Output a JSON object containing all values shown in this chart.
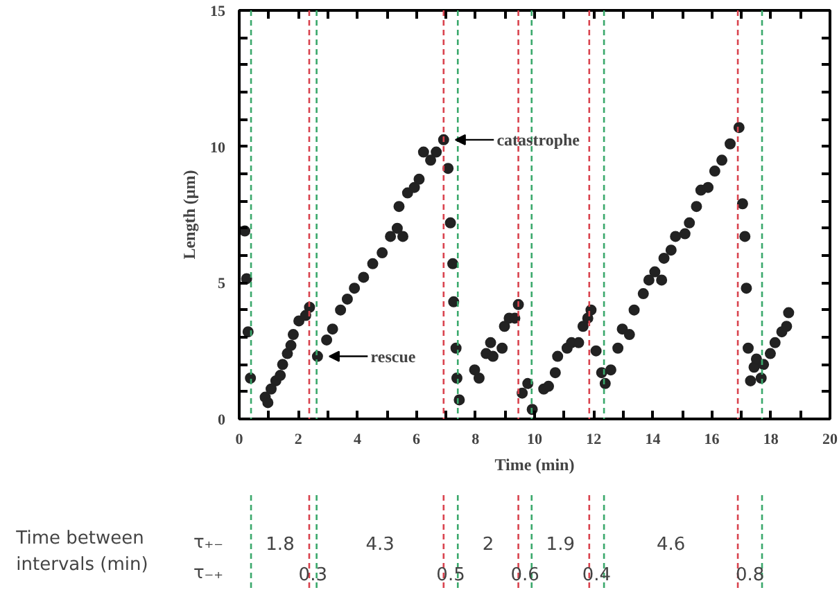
{
  "chart_data": {
    "type": "scatter",
    "xlabel": "Time (min)",
    "ylabel": "Length (µm)",
    "x": [
      0.19,
      0.25,
      0.3,
      0.38,
      0.88,
      0.97,
      1.08,
      1.24,
      1.39,
      1.47,
      1.63,
      1.75,
      1.83,
      2.02,
      2.25,
      2.38,
      2.65,
      2.96,
      3.16,
      3.43,
      3.66,
      3.9,
      4.21,
      4.52,
      4.84,
      5.12,
      5.35,
      5.54,
      5.41,
      5.7,
      5.93,
      6.09,
      6.24,
      6.48,
      6.67,
      6.92,
      7.07,
      7.15,
      7.23,
      7.26,
      7.34,
      7.37,
      7.45,
      7.97,
      8.12,
      8.36,
      8.51,
      8.59,
      8.9,
      8.98,
      9.14,
      9.33,
      9.45,
      9.58,
      9.77,
      9.92,
      10.31,
      10.47,
      10.7,
      10.78,
      11.1,
      11.25,
      11.49,
      11.64,
      11.8,
      11.91,
      12.08,
      12.27,
      12.39,
      12.58,
      12.82,
      12.97,
      13.21,
      13.37,
      13.68,
      13.87,
      14.07,
      14.3,
      14.38,
      14.62,
      14.77,
      15.09,
      15.24,
      15.48,
      15.63,
      15.87,
      16.1,
      16.34,
      16.62,
      16.92,
      17.04,
      17.12,
      17.17,
      17.23,
      17.31,
      17.43,
      17.51,
      17.67,
      17.75,
      17.98,
      18.14,
      18.37,
      18.53,
      18.6
    ],
    "values": [
      6.9,
      5.15,
      3.2,
      1.5,
      0.8,
      0.6,
      1.1,
      1.4,
      1.6,
      2.0,
      2.4,
      2.7,
      3.1,
      3.6,
      3.8,
      4.1,
      2.3,
      2.9,
      3.3,
      4.0,
      4.4,
      4.8,
      5.2,
      5.7,
      6.1,
      6.7,
      7.0,
      6.7,
      7.8,
      8.3,
      8.5,
      8.8,
      9.8,
      9.5,
      9.8,
      10.25,
      9.2,
      7.2,
      5.7,
      4.3,
      2.6,
      1.5,
      0.7,
      1.8,
      1.5,
      2.4,
      2.8,
      2.3,
      2.6,
      3.4,
      3.7,
      3.7,
      4.2,
      0.95,
      1.3,
      0.35,
      1.1,
      1.2,
      1.7,
      2.3,
      2.6,
      2.8,
      2.8,
      3.4,
      3.7,
      4.0,
      2.5,
      1.7,
      1.3,
      1.8,
      2.6,
      3.3,
      3.1,
      4.0,
      4.6,
      5.1,
      5.4,
      5.1,
      5.9,
      6.2,
      6.7,
      6.8,
      7.2,
      7.8,
      8.4,
      8.5,
      9.1,
      9.5,
      10.1,
      10.7,
      7.9,
      6.7,
      4.8,
      2.6,
      1.4,
      1.9,
      2.2,
      1.5,
      2.0,
      2.4,
      2.8,
      3.2,
      3.4,
      3.9
    ],
    "color": "#222222",
    "marker": "circle",
    "grid": false,
    "xlim": [
      0,
      20
    ],
    "ylim": [
      0,
      15
    ],
    "xticks": [
      0,
      {
        "value": 1,
        "label": null
      },
      2,
      {
        "value": 3,
        "label": null
      },
      4,
      {
        "value": 5,
        "label": null
      },
      6,
      {
        "value": 7,
        "label": null
      },
      8,
      {
        "value": 9,
        "label": null
      },
      10,
      {
        "value": 11,
        "label": null
      },
      12,
      {
        "value": 13,
        "label": null
      },
      14,
      {
        "value": 15,
        "label": null
      },
      16,
      {
        "value": 17,
        "label": null
      },
      18,
      {
        "value": 19,
        "label": null
      },
      20
    ],
    "yticks": [
      0,
      {
        "value": 1,
        "label": null
      },
      {
        "value": 2,
        "label": null
      },
      {
        "value": 3,
        "label": null
      },
      {
        "value": 4,
        "label": null
      },
      5,
      {
        "value": 6,
        "label": null
      },
      {
        "value": 7,
        "label": null
      },
      {
        "value": 8,
        "label": null
      },
      {
        "value": 9,
        "label": null
      },
      10,
      {
        "value": 11,
        "label": null
      },
      {
        "value": 12,
        "label": null
      },
      {
        "value": 13,
        "label": null
      },
      {
        "value": 14,
        "label": null
      },
      15
    ],
    "ref_lines": [
      {
        "axis": "x",
        "value": 0.4,
        "color": "#3aa86b",
        "line_style": "dashed"
      },
      {
        "axis": "x",
        "value": 2.37,
        "color": "#d9434e",
        "line_style": "dashed"
      },
      {
        "axis": "x",
        "value": 2.62,
        "color": "#3aa86b",
        "line_style": "dashed"
      },
      {
        "axis": "x",
        "value": 6.92,
        "color": "#d9434e",
        "line_style": "dashed"
      },
      {
        "axis": "x",
        "value": 7.4,
        "color": "#3aa86b",
        "line_style": "dashed"
      },
      {
        "axis": "x",
        "value": 9.45,
        "color": "#d9434e",
        "line_style": "dashed"
      },
      {
        "axis": "x",
        "value": 9.9,
        "color": "#3aa86b",
        "line_style": "dashed"
      },
      {
        "axis": "x",
        "value": 11.85,
        "color": "#d9434e",
        "line_style": "dashed"
      },
      {
        "axis": "x",
        "value": 12.35,
        "color": "#3aa86b",
        "line_style": "dashed"
      },
      {
        "axis": "x",
        "value": 16.88,
        "color": "#d9434e",
        "line_style": "dashed"
      },
      {
        "axis": "x",
        "value": 17.7,
        "color": "#3aa86b",
        "line_style": "dashed"
      }
    ],
    "annotations": [
      {
        "text": "catastrophe",
        "x": 6.92,
        "y": 10.25
      },
      {
        "text": "rescue",
        "x": 2.65,
        "y": 2.3
      },
      "Time between\nintervals (min)",
      "τ₊₋",
      "τ₋₊",
      "1.8",
      "4.3",
      "2",
      "1.9",
      "4.6",
      "0.3",
      "0.5",
      "0.6",
      "0.4",
      "0.8"
    ]
  }
}
